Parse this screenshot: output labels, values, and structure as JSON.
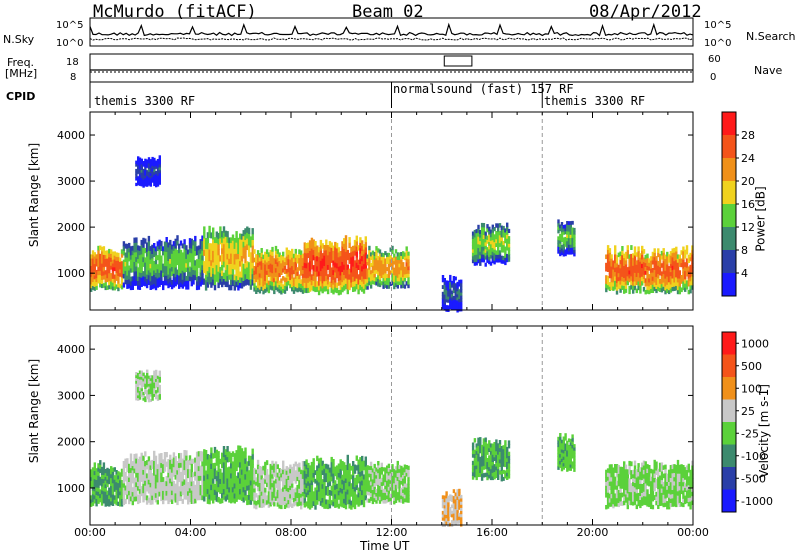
{
  "header": {
    "station": "McMurdo (fitACF)",
    "beam": "Beam 02",
    "date": "08/Apr/2012"
  },
  "noise_panel": {
    "left_label": "N.Sky",
    "right_label": "N.Search",
    "right_ticks": [
      "10^5",
      "10^0"
    ],
    "left_ticks": [
      "10^5",
      "10^0"
    ]
  },
  "freq_panel": {
    "left_label_1": "Freq.",
    "left_label_2": "[MHz]",
    "left_ticks": [
      "18",
      "8"
    ],
    "right_label": "Nave",
    "right_ticks": [
      "60",
      "0"
    ]
  },
  "cpid": {
    "label": "CPID",
    "segments": [
      {
        "text": "themis 3300 RF",
        "start_hour": 0
      },
      {
        "text": "normalsound (fast) 157 RF",
        "start_hour": 12
      },
      {
        "text": "themis 3300 RF",
        "start_hour": 18
      }
    ]
  },
  "x_axis": {
    "label": "Time UT",
    "ticks": [
      "00:00",
      "04:00",
      "08:00",
      "12:00",
      "16:00",
      "20:00",
      "00:00"
    ]
  },
  "colors": {
    "power": [
      "#1a1aff",
      "#2a3fa8",
      "#3c8a6e",
      "#5bd13a",
      "#f0d21e",
      "#f09019",
      "#f4541a",
      "#ff1a1a"
    ],
    "velocity": [
      "#ff1a1a",
      "#f4541a",
      "#f0901a",
      "#c8c8c8",
      "#5bd13a",
      "#3c8a6e",
      "#2a3fa8",
      "#1a1aff"
    ]
  },
  "chart_data": [
    {
      "type": "heatmap",
      "name": "power",
      "ylabel": "Slant Range [km]",
      "yticks": [
        "1000",
        "2000",
        "3000",
        "4000"
      ],
      "ylim": [
        200,
        4500
      ],
      "xlim": [
        0,
        24
      ],
      "colorbar_label": "Power [dB]",
      "colorbar_ticks": [
        "4",
        "8",
        "12",
        "16",
        "20",
        "24",
        "28"
      ],
      "clim": [
        0,
        32
      ],
      "blobs": [
        {
          "t0": 0,
          "t1": 1.3,
          "r0": 650,
          "r1": 1500,
          "v": 26
        },
        {
          "t0": 1.3,
          "t1": 4.5,
          "r0": 700,
          "r1": 1700,
          "v": 14
        },
        {
          "t0": 4.5,
          "t1": 6.5,
          "r0": 700,
          "r1": 1900,
          "v": 20
        },
        {
          "t0": 6.5,
          "t1": 8.5,
          "r0": 600,
          "r1": 1500,
          "v": 24
        },
        {
          "t0": 8.5,
          "t1": 11.0,
          "r0": 600,
          "r1": 1700,
          "v": 28
        },
        {
          "t0": 11.0,
          "t1": 12.7,
          "r0": 700,
          "r1": 1500,
          "v": 22
        },
        {
          "t0": 14.0,
          "t1": 14.8,
          "r0": 200,
          "r1": 900,
          "v": 8
        },
        {
          "t0": 15.2,
          "t1": 16.7,
          "r0": 1200,
          "r1": 2000,
          "v": 16
        },
        {
          "t0": 18.6,
          "t1": 19.3,
          "r0": 1400,
          "r1": 2100,
          "v": 14
        },
        {
          "t0": 20.5,
          "t1": 24.0,
          "r0": 600,
          "r1": 1500,
          "v": 26
        },
        {
          "t0": 1.8,
          "t1": 2.8,
          "r0": 2900,
          "r1": 3500,
          "v": 6
        }
      ]
    },
    {
      "type": "heatmap",
      "name": "velocity",
      "ylabel": "Slant Range [km]",
      "yticks": [
        "1000",
        "2000",
        "3000",
        "4000"
      ],
      "ylim": [
        200,
        4500
      ],
      "xlim": [
        0,
        24
      ],
      "colorbar_label": "Velocity [m s-1]",
      "colorbar_ticks": [
        "1000",
        "500",
        "100",
        "25",
        "-25",
        "-100",
        "-500",
        "-1000"
      ],
      "clim": [
        -1200,
        1200
      ],
      "blobs": [
        {
          "t0": 0,
          "t1": 1.3,
          "r0": 650,
          "r1": 1500,
          "v": -300
        },
        {
          "t0": 1.3,
          "t1": 4.5,
          "r0": 700,
          "r1": 1700,
          "v": 80
        },
        {
          "t0": 4.5,
          "t1": 6.5,
          "r0": 700,
          "r1": 1800,
          "v": -200
        },
        {
          "t0": 6.5,
          "t1": 8.5,
          "r0": 600,
          "r1": 1500,
          "v": 60
        },
        {
          "t0": 8.5,
          "t1": 11.0,
          "r0": 600,
          "r1": 1600,
          "v": -250
        },
        {
          "t0": 11.0,
          "t1": 12.7,
          "r0": 700,
          "r1": 1500,
          "v": -60
        },
        {
          "t0": 14.0,
          "t1": 14.8,
          "r0": 200,
          "r1": 900,
          "v": 300
        },
        {
          "t0": 15.2,
          "t1": 16.7,
          "r0": 1200,
          "r1": 2000,
          "v": -300
        },
        {
          "t0": 18.6,
          "t1": 19.3,
          "r0": 1400,
          "r1": 2100,
          "v": -200
        },
        {
          "t0": 20.5,
          "t1": 24.0,
          "r0": 600,
          "r1": 1500,
          "v": -80
        },
        {
          "t0": 1.8,
          "t1": 2.8,
          "r0": 2900,
          "r1": 3500,
          "v": 0
        }
      ]
    }
  ]
}
